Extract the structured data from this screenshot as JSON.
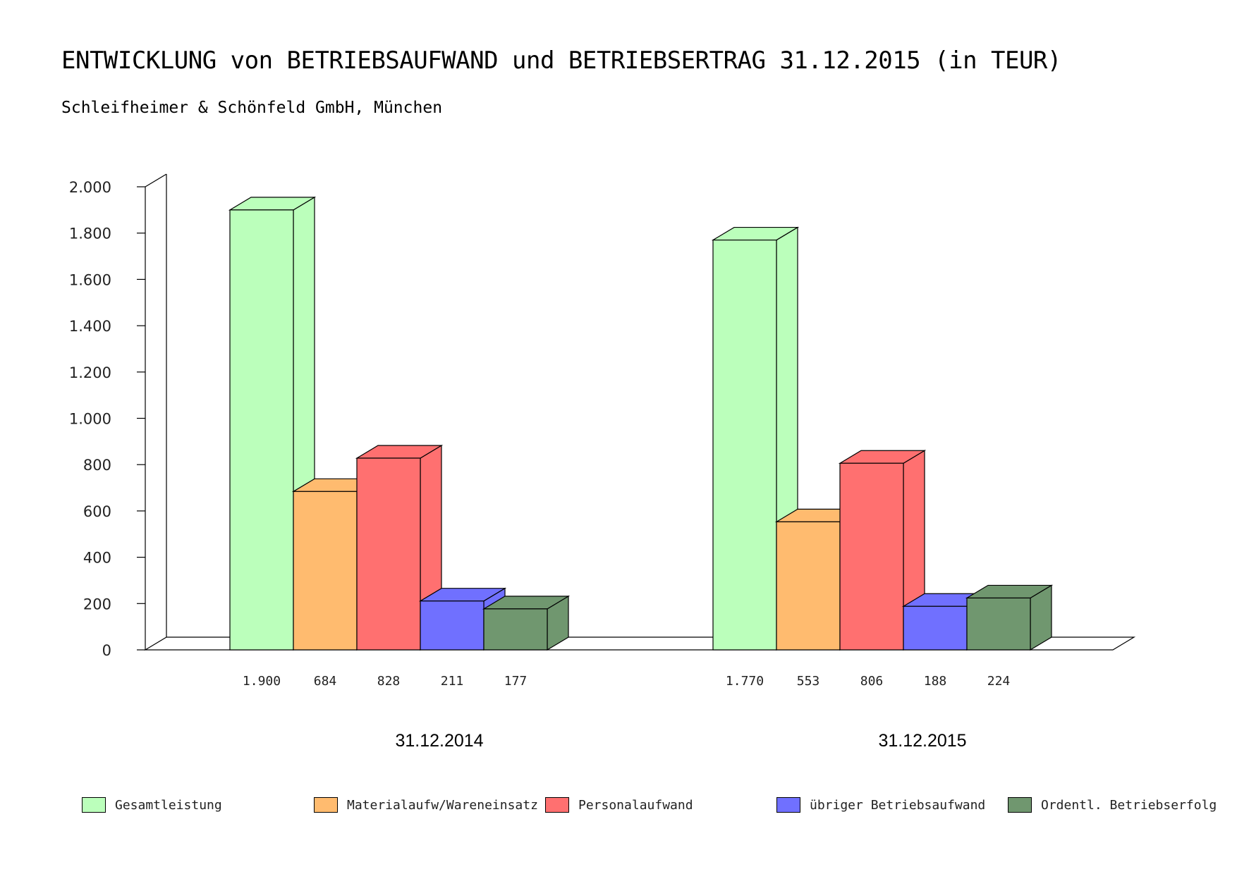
{
  "title": "ENTWICKLUNG von BETRIEBSAUFWAND und BETRIEBSERTRAG 31.12.2015 (in TEUR)",
  "subtitle": "Schleifheimer & Schönfeld GmbH, München",
  "chart_data": {
    "type": "bar",
    "ylim": [
      0,
      2000
    ],
    "yticks": [
      {
        "value": 0,
        "label": "0"
      },
      {
        "value": 200,
        "label": "200"
      },
      {
        "value": 400,
        "label": "400"
      },
      {
        "value": 600,
        "label": "600"
      },
      {
        "value": 800,
        "label": "800"
      },
      {
        "value": 1000,
        "label": "1.000"
      },
      {
        "value": 1200,
        "label": "1.200"
      },
      {
        "value": 1400,
        "label": "1.400"
      },
      {
        "value": 1600,
        "label": "1.600"
      },
      {
        "value": 1800,
        "label": "1.800"
      },
      {
        "value": 2000,
        "label": "2.000"
      }
    ],
    "categories": [
      "31.12.2014",
      "31.12.2015"
    ],
    "series": [
      {
        "name": "Gesamtleistung",
        "color": "#bbffbb",
        "values": [
          1900,
          1770
        ],
        "labels": [
          "1.900",
          "1.770"
        ]
      },
      {
        "name": "Materialaufw/Wareneinsatz",
        "color": "#ffbb6f",
        "values": [
          684,
          553
        ],
        "labels": [
          "684",
          "553"
        ]
      },
      {
        "name": "Personalaufwand",
        "color": "#ff7070",
        "values": [
          828,
          806
        ],
        "labels": [
          "828",
          "806"
        ]
      },
      {
        "name": "übriger Betriebsaufwand",
        "color": "#7070ff",
        "values": [
          211,
          188
        ],
        "labels": [
          "211",
          "188"
        ]
      },
      {
        "name": "Ordentl. Betriebserfolg",
        "color": "#70976f",
        "values": [
          177,
          224
        ],
        "labels": [
          "177",
          "224"
        ]
      }
    ],
    "legend": "bottom",
    "grid": false,
    "style": "3d"
  }
}
